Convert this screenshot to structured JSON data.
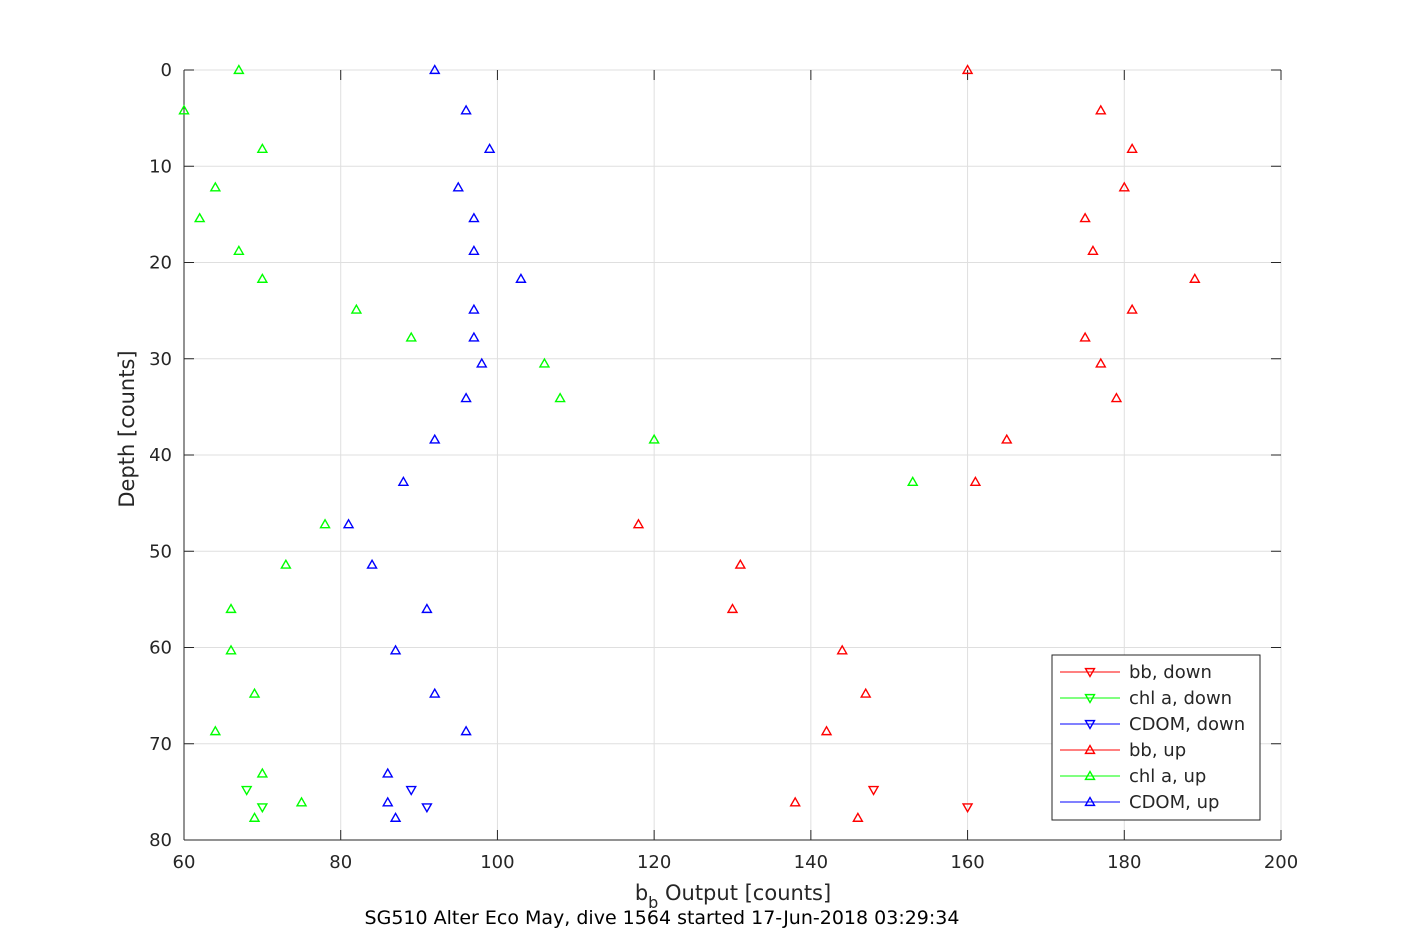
{
  "chart_data": {
    "type": "scatter",
    "title": "",
    "caption": "SG510 Alter Eco May, dive 1564 started 17-Jun-2018 03:29:34",
    "xlabel_main": "b",
    "xlabel_sub": "b",
    "xlabel_rest": " Output [counts]",
    "ylabel": "Depth [counts]",
    "xlim": [
      60,
      200
    ],
    "ylim": [
      0,
      80
    ],
    "y_reversed": true,
    "grid": true,
    "legend_position": "bottom-right",
    "x_ticks": [
      "60",
      "80",
      "100",
      "120",
      "140",
      "160",
      "180",
      "200"
    ],
    "y_ticks": [
      "0",
      "10",
      "20",
      "30",
      "40",
      "50",
      "60",
      "70",
      "80"
    ],
    "colors": {
      "bb": "#ff0000",
      "chl": "#00ff00",
      "cdom": "#0000ff",
      "axis": "#262626",
      "grid": "#dfdfdf"
    },
    "series": [
      {
        "name": "bb, down",
        "color": "#ff0000",
        "marker": "triangle-down",
        "points": [
          [
            148,
            74.8
          ],
          [
            160,
            76.6
          ]
        ]
      },
      {
        "name": "chl a, down",
        "color": "#00ff00",
        "marker": "triangle-down",
        "points": [
          [
            68,
            74.8
          ],
          [
            70,
            76.6
          ]
        ]
      },
      {
        "name": "CDOM, down",
        "color": "#0000ff",
        "marker": "triangle-down",
        "points": [
          [
            89,
            74.8
          ],
          [
            91,
            76.6
          ]
        ]
      },
      {
        "name": "bb, up",
        "color": "#ff0000",
        "marker": "triangle-up",
        "points": [
          [
            160,
            0
          ],
          [
            177,
            4.2
          ],
          [
            181,
            8.2
          ],
          [
            180,
            12.2
          ],
          [
            175,
            15.4
          ],
          [
            176,
            18.8
          ],
          [
            189,
            21.7
          ],
          [
            181,
            24.9
          ],
          [
            175,
            27.8
          ],
          [
            177,
            30.5
          ],
          [
            179,
            34.1
          ],
          [
            165,
            38.4
          ],
          [
            161,
            42.8
          ],
          [
            118,
            47.2
          ],
          [
            131,
            51.4
          ],
          [
            130,
            56.0
          ],
          [
            144,
            60.3
          ],
          [
            147,
            64.8
          ],
          [
            142,
            68.7
          ],
          [
            138,
            76.1
          ],
          [
            146,
            77.7
          ]
        ]
      },
      {
        "name": "chl a, up",
        "color": "#00ff00",
        "marker": "triangle-up",
        "points": [
          [
            67,
            0
          ],
          [
            60,
            4.2
          ],
          [
            70,
            8.2
          ],
          [
            64,
            12.2
          ],
          [
            62,
            15.4
          ],
          [
            67,
            18.8
          ],
          [
            70,
            21.7
          ],
          [
            82,
            24.9
          ],
          [
            89,
            27.8
          ],
          [
            106,
            30.5
          ],
          [
            108,
            34.1
          ],
          [
            120,
            38.4
          ],
          [
            153,
            42.8
          ],
          [
            78,
            47.2
          ],
          [
            73,
            51.4
          ],
          [
            66,
            56.0
          ],
          [
            66,
            60.3
          ],
          [
            69,
            64.8
          ],
          [
            64,
            68.7
          ],
          [
            70,
            73.1
          ],
          [
            75,
            76.1
          ],
          [
            69,
            77.7
          ]
        ]
      },
      {
        "name": "CDOM, up",
        "color": "#0000ff",
        "marker": "triangle-up",
        "points": [
          [
            92,
            0
          ],
          [
            96,
            4.2
          ],
          [
            99,
            8.2
          ],
          [
            95,
            12.2
          ],
          [
            97,
            15.4
          ],
          [
            97,
            18.8
          ],
          [
            103,
            21.7
          ],
          [
            97,
            24.9
          ],
          [
            97,
            27.8
          ],
          [
            98,
            30.5
          ],
          [
            96,
            34.1
          ],
          [
            92,
            38.4
          ],
          [
            88,
            42.8
          ],
          [
            81,
            47.2
          ],
          [
            84,
            51.4
          ],
          [
            91,
            56.0
          ],
          [
            87,
            60.3
          ],
          [
            92,
            64.8
          ],
          [
            96,
            68.7
          ],
          [
            86,
            73.1
          ],
          [
            86,
            76.1
          ],
          [
            87,
            77.7
          ]
        ]
      }
    ]
  }
}
